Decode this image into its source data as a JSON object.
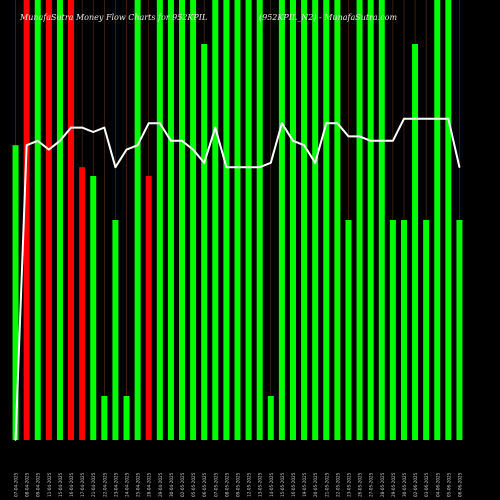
{
  "title": {
    "left": "MunafaSutra Money Flow  Charts for 952KPIL",
    "right": "(952KPIL_N2) - MunafaSutra.com"
  },
  "colors": {
    "background": "#000000",
    "up": "#00ff00",
    "down": "#ff0000",
    "line": "#ffffff",
    "gridline": "#8b4513"
  },
  "chart_data": {
    "type": "bar",
    "ylim": [
      0,
      100
    ],
    "line_ylim": [
      0,
      100
    ],
    "categories": [
      "07-04-2025",
      "08-04-2025",
      "09-04-2025",
      "11-04-2025",
      "15-04-2025",
      "16-04-2025",
      "17-04-2025",
      "21-04-2025",
      "22-04-2025",
      "23-04-2025",
      "24-04-2025",
      "25-04-2025",
      "28-04-2025",
      "29-04-2025",
      "30-04-2025",
      "02-05-2025",
      "05-05-2025",
      "06-05-2025",
      "07-05-2025",
      "08-05-2025",
      "09-05-2025",
      "12-05-2025",
      "13-05-2025",
      "14-05-2025",
      "15-05-2025",
      "16-05-2025",
      "19-05-2025",
      "20-05-2025",
      "21-05-2025",
      "22-05-2025",
      "23-05-2025",
      "26-05-2025",
      "27-05-2025",
      "28-05-2025",
      "29-05-2025",
      "30-05-2025",
      "02-06-2025",
      "03-06-2025",
      "04-06-2025",
      "05-06-2025",
      "06-06-2025"
    ],
    "bars": [
      {
        "value": 67,
        "dir": "up"
      },
      {
        "value": 100,
        "dir": "down"
      },
      {
        "value": 100,
        "dir": "up"
      },
      {
        "value": 100,
        "dir": "down"
      },
      {
        "value": 100,
        "dir": "up"
      },
      {
        "value": 100,
        "dir": "down"
      },
      {
        "value": 62,
        "dir": "down"
      },
      {
        "value": 60,
        "dir": "up"
      },
      {
        "value": 10,
        "dir": "up"
      },
      {
        "value": 50,
        "dir": "up"
      },
      {
        "value": 10,
        "dir": "up"
      },
      {
        "value": 100,
        "dir": "up"
      },
      {
        "value": 60,
        "dir": "down"
      },
      {
        "value": 100,
        "dir": "up"
      },
      {
        "value": 100,
        "dir": "up"
      },
      {
        "value": 100,
        "dir": "up"
      },
      {
        "value": 100,
        "dir": "up"
      },
      {
        "value": 90,
        "dir": "up"
      },
      {
        "value": 100,
        "dir": "up"
      },
      {
        "value": 100,
        "dir": "up"
      },
      {
        "value": 100,
        "dir": "up"
      },
      {
        "value": 100,
        "dir": "up"
      },
      {
        "value": 100,
        "dir": "up"
      },
      {
        "value": 10,
        "dir": "up"
      },
      {
        "value": 100,
        "dir": "up"
      },
      {
        "value": 100,
        "dir": "up"
      },
      {
        "value": 100,
        "dir": "up"
      },
      {
        "value": 100,
        "dir": "up"
      },
      {
        "value": 100,
        "dir": "up"
      },
      {
        "value": 100,
        "dir": "up"
      },
      {
        "value": 50,
        "dir": "up"
      },
      {
        "value": 100,
        "dir": "up"
      },
      {
        "value": 100,
        "dir": "up"
      },
      {
        "value": 100,
        "dir": "up"
      },
      {
        "value": 50,
        "dir": "up"
      },
      {
        "value": 50,
        "dir": "up"
      },
      {
        "value": 90,
        "dir": "up"
      },
      {
        "value": 50,
        "dir": "up"
      },
      {
        "value": 100,
        "dir": "up"
      },
      {
        "value": 100,
        "dir": "up"
      },
      {
        "value": 50,
        "dir": "up"
      }
    ],
    "line": [
      0,
      67,
      68,
      66,
      68,
      71,
      71,
      70,
      71,
      62,
      66,
      67,
      72,
      72,
      68,
      68,
      66,
      63,
      71,
      62,
      62,
      62,
      62,
      63,
      72,
      68,
      67,
      63,
      72,
      72,
      69,
      69,
      68,
      68,
      68,
      73,
      73,
      73,
      73,
      73,
      62
    ]
  }
}
